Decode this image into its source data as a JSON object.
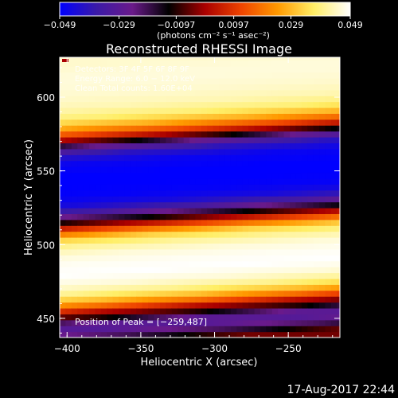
{
  "chart_data": {
    "type": "heatmap",
    "title": "Reconstructed RHESSI Image",
    "xlabel": "Heliocentric X (arcsec)",
    "ylabel": "Heliocentric Y (arcsec)",
    "xlim": [
      -405,
      -215
    ],
    "ylim": [
      437,
      627
    ],
    "x_ticks": [
      -400,
      -350,
      -300,
      -250
    ],
    "y_ticks": [
      450,
      500,
      550,
      600
    ],
    "x_tick_labels": [
      "−400",
      "−350",
      "−300",
      "−250"
    ],
    "y_tick_labels": [
      "450",
      "500",
      "550",
      "600"
    ],
    "colorbar": {
      "min": -0.049,
      "max": 0.049,
      "ticks": [
        -0.049,
        -0.029,
        -0.0097,
        0.0097,
        0.029,
        0.049
      ],
      "tick_labels": [
        "−0.049",
        "−0.029",
        "−0.0097",
        "0.0097",
        "0.029",
        "0.049"
      ],
      "unit_label": "(photons cm⁻² s⁻¹ asec⁻²)",
      "colors": [
        "#0000ff",
        "#3a1aa8",
        "#6a1a8a",
        "#000000",
        "#aa0000",
        "#ee4400",
        "#ff9900",
        "#ffee66",
        "#ffffff"
      ]
    },
    "info_lines": [
      "Detectors: 3F 4F 5F 6F 8F 9F",
      "Energy Range: 6.0 − 12.0 keV",
      "Clean     Total counts: 1.60E+04"
    ],
    "peak_label": "Position of Peak = [−259,487]",
    "peak": [
      -259,
      487
    ],
    "intensity_profile_vs_y": [
      {
        "y": 437,
        "v": -0.004
      },
      {
        "y": 442,
        "v": -0.02
      },
      {
        "y": 447,
        "v": -0.03
      },
      {
        "y": 451,
        "v": -0.028
      },
      {
        "y": 455,
        "v": -0.01
      },
      {
        "y": 459,
        "v": 0.002
      },
      {
        "y": 463,
        "v": 0.018
      },
      {
        "y": 467,
        "v": 0.03
      },
      {
        "y": 472,
        "v": 0.04
      },
      {
        "y": 478,
        "v": 0.046
      },
      {
        "y": 485,
        "v": 0.049
      },
      {
        "y": 492,
        "v": 0.048
      },
      {
        "y": 498,
        "v": 0.046
      },
      {
        "y": 504,
        "v": 0.041
      },
      {
        "y": 509,
        "v": 0.033
      },
      {
        "y": 513,
        "v": 0.02
      },
      {
        "y": 516,
        "v": 0.008
      },
      {
        "y": 519,
        "v": -0.004
      },
      {
        "y": 523,
        "v": -0.02
      },
      {
        "y": 527,
        "v": -0.034
      },
      {
        "y": 532,
        "v": -0.044
      },
      {
        "y": 538,
        "v": -0.048
      },
      {
        "y": 545,
        "v": -0.049
      },
      {
        "y": 552,
        "v": -0.049
      },
      {
        "y": 560,
        "v": -0.047
      },
      {
        "y": 566,
        "v": -0.04
      },
      {
        "y": 571,
        "v": -0.026
      },
      {
        "y": 574,
        "v": -0.01
      },
      {
        "y": 577,
        "v": 0.003
      },
      {
        "y": 580,
        "v": 0.014
      },
      {
        "y": 585,
        "v": 0.028
      },
      {
        "y": 591,
        "v": 0.038
      },
      {
        "y": 598,
        "v": 0.043
      },
      {
        "y": 606,
        "v": 0.045
      },
      {
        "y": 614,
        "v": 0.046
      },
      {
        "y": 620,
        "v": 0.046
      },
      {
        "y": 627,
        "v": 0.045
      }
    ],
    "band_tilt_per_arcsec": 0.06
  },
  "footer": {
    "timestamp": "17-Aug-2017 22:44"
  }
}
